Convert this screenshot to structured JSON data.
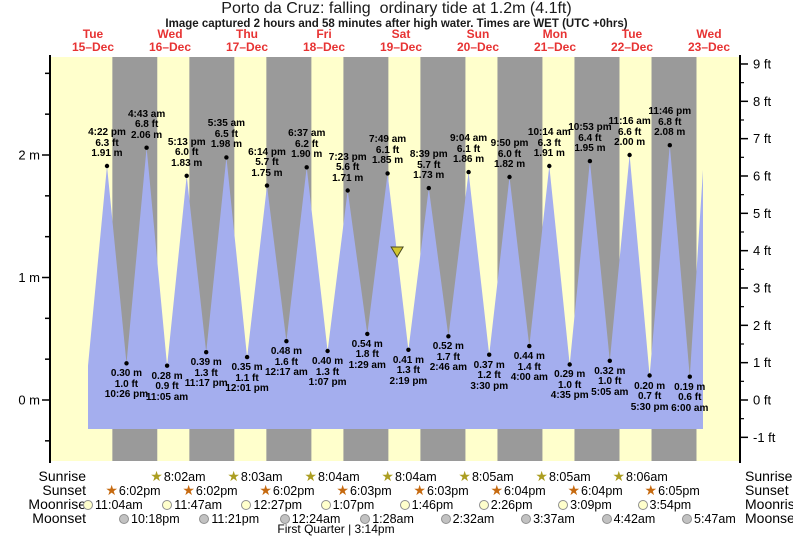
{
  "title": "Porto da Cruz: falling  ordinary tide at 1.2m (4.1ft)",
  "subtitle": "Image captured 2 hours and 58 minutes after high water. Times are WET (UTC +0hrs)",
  "chart_data": {
    "type": "area",
    "title": "Porto da Cruz: falling  ordinary tide at 1.2m (4.1ft)",
    "ylabel_left": "metres",
    "ylabel_right": "feet",
    "day_labels": [
      {
        "dow": "Tue",
        "date": "15–Dec"
      },
      {
        "dow": "Wed",
        "date": "16–Dec"
      },
      {
        "dow": "Thu",
        "date": "17–Dec"
      },
      {
        "dow": "Fri",
        "date": "18–Dec"
      },
      {
        "dow": "Sat",
        "date": "19–Dec"
      },
      {
        "dow": "Sun",
        "date": "20–Dec"
      },
      {
        "dow": "Mon",
        "date": "21–Dec"
      },
      {
        "dow": "Tue",
        "date": "22–Dec"
      },
      {
        "dow": "Wed",
        "date": "23–Dec"
      }
    ],
    "y_axis_m": {
      "labels": [
        "2 m",
        "1 m",
        "0 m"
      ],
      "values": [
        2,
        1,
        0
      ]
    },
    "y_axis_ft": {
      "labels": [
        "9 ft",
        "8 ft",
        "7 ft",
        "6 ft",
        "5 ft",
        "4 ft",
        "3 ft",
        "2 ft",
        "1 ft",
        "0 ft",
        "-1 ft"
      ],
      "values": [
        9,
        8,
        7,
        6,
        5,
        4,
        3,
        2,
        1,
        0,
        -1
      ]
    },
    "high_tides": [
      {
        "day": 0,
        "time": "4:22 pm",
        "ft": 6.3,
        "m": 1.91
      },
      {
        "day": 1,
        "time": "4:43 am",
        "ft": 6.8,
        "m": 2.06
      },
      {
        "day": 1,
        "time": "5:13 pm",
        "ft": 6.0,
        "m": 1.83
      },
      {
        "day": 2,
        "time": "5:35 am",
        "ft": 6.5,
        "m": 1.98
      },
      {
        "day": 2,
        "time": "6:14 pm",
        "ft": 5.7,
        "m": 1.75
      },
      {
        "day": 3,
        "time": "6:37 am",
        "ft": 6.2,
        "m": 1.9
      },
      {
        "day": 3,
        "time": "7:23 pm",
        "ft": 5.6,
        "m": 1.71
      },
      {
        "day": 4,
        "time": "7:49 am",
        "ft": 6.1,
        "m": 1.85
      },
      {
        "day": 4,
        "time": "8:39 pm",
        "ft": 5.7,
        "m": 1.73
      },
      {
        "day": 5,
        "time": "9:04 am",
        "ft": 6.1,
        "m": 1.86
      },
      {
        "day": 5,
        "time": "9:50 pm",
        "ft": 6.0,
        "m": 1.82
      },
      {
        "day": 6,
        "time": "10:14 am",
        "ft": 6.3,
        "m": 1.91
      },
      {
        "day": 6,
        "time": "10:53 pm",
        "ft": 6.4,
        "m": 1.95
      },
      {
        "day": 7,
        "time": "11:16 am",
        "ft": 6.6,
        "m": 2.0
      },
      {
        "day": 7,
        "time": "11:46 pm",
        "ft": 6.8,
        "m": 2.08
      }
    ],
    "low_tides": [
      {
        "day": 0,
        "time": "10:26 pm",
        "ft": 1.0,
        "m": 0.3
      },
      {
        "day": 1,
        "time": "11:05 am",
        "ft": 0.9,
        "m": 0.28
      },
      {
        "day": 1,
        "time": "11:17 pm",
        "ft": 1.3,
        "m": 0.39
      },
      {
        "day": 2,
        "time": "12:01 pm",
        "ft": 1.1,
        "m": 0.35
      },
      {
        "day": 3,
        "time": "12:17 am",
        "ft": 1.6,
        "m": 0.48
      },
      {
        "day": 3,
        "time": "1:07 pm",
        "ft": 1.3,
        "m": 0.4
      },
      {
        "day": 4,
        "time": "1:29 am",
        "ft": 1.8,
        "m": 0.54
      },
      {
        "day": 4,
        "time": "2:19 pm",
        "ft": 1.3,
        "m": 0.41
      },
      {
        "day": 5,
        "time": "2:46 am",
        "ft": 1.7,
        "m": 0.52
      },
      {
        "day": 5,
        "time": "3:30 pm",
        "ft": 1.2,
        "m": 0.37
      },
      {
        "day": 6,
        "time": "4:00 am",
        "ft": 1.4,
        "m": 0.44
      },
      {
        "day": 6,
        "time": "4:35 pm",
        "ft": 1.0,
        "m": 0.29
      },
      {
        "day": 7,
        "time": "5:05 am",
        "ft": 1.0,
        "m": 0.32
      },
      {
        "day": 7,
        "time": "5:30 pm",
        "ft": 0.7,
        "m": 0.2
      },
      {
        "day": 8,
        "time": "6:00 am",
        "ft": 0.6,
        "m": 0.19
      }
    ],
    "curve_start": {
      "day": 0,
      "time": "10:15 am",
      "m": 0.28
    },
    "curve_end_partial_peak": {
      "day": 8,
      "time": "12:10 pm",
      "m": 1.88
    },
    "now_marker": {
      "day": 4,
      "time": "10:47 am",
      "m": 1.2
    }
  },
  "astro": {
    "left_labels": [
      "Sunrise",
      "Sunset",
      "Moonrise",
      "Moonset"
    ],
    "right_labels": [
      "Sunrise",
      "Sunset",
      "Moonrise",
      "Moonset"
    ],
    "sunrise": [
      {
        "day": 1,
        "time": "8:02am"
      },
      {
        "day": 2,
        "time": "8:03am"
      },
      {
        "day": 3,
        "time": "8:04am"
      },
      {
        "day": 4,
        "time": "8:04am"
      },
      {
        "day": 5,
        "time": "8:05am"
      },
      {
        "day": 6,
        "time": "8:05am"
      },
      {
        "day": 7,
        "time": "8:06am"
      }
    ],
    "sunset": [
      {
        "day": 0,
        "time": "6:02pm"
      },
      {
        "day": 1,
        "time": "6:02pm"
      },
      {
        "day": 2,
        "time": "6:02pm"
      },
      {
        "day": 3,
        "time": "6:03pm"
      },
      {
        "day": 4,
        "time": "6:03pm"
      },
      {
        "day": 5,
        "time": "6:04pm"
      },
      {
        "day": 6,
        "time": "6:04pm"
      },
      {
        "day": 7,
        "time": "6:05pm"
      }
    ],
    "moonrise": [
      {
        "day": 0,
        "time": "11:04am"
      },
      {
        "day": 1,
        "time": "11:47am"
      },
      {
        "day": 2,
        "time": "12:27pm"
      },
      {
        "day": 3,
        "time": "1:07pm"
      },
      {
        "day": 4,
        "time": "1:46pm"
      },
      {
        "day": 5,
        "time": "2:26pm"
      },
      {
        "day": 6,
        "time": "3:09pm"
      },
      {
        "day": 7,
        "time": "3:54pm"
      }
    ],
    "moonset": [
      {
        "day": 0,
        "time": "10:18pm"
      },
      {
        "day": 1,
        "time": "11:21pm"
      },
      {
        "day": 3,
        "time": "12:24am"
      },
      {
        "day": 4,
        "time": "1:28am"
      },
      {
        "day": 5,
        "time": "2:32am"
      },
      {
        "day": 6,
        "time": "3:37am"
      },
      {
        "day": 7,
        "time": "4:42am"
      },
      {
        "day": 8,
        "time": "5:47am"
      }
    ],
    "moon_phase": "First Quarter | 3:14pm"
  },
  "colors": {
    "day_band": "#ffffcc",
    "night_band": "#9a9a9a",
    "tide_fill": "#a4aeee",
    "day_label": "#e73333",
    "sunrise_star": "#ac9e22",
    "sunset_star": "#c66a10",
    "moonrise_fill": "#ffffcc",
    "moonset_fill": "#c2c2c2",
    "marker_fill": "#d2c62e"
  }
}
